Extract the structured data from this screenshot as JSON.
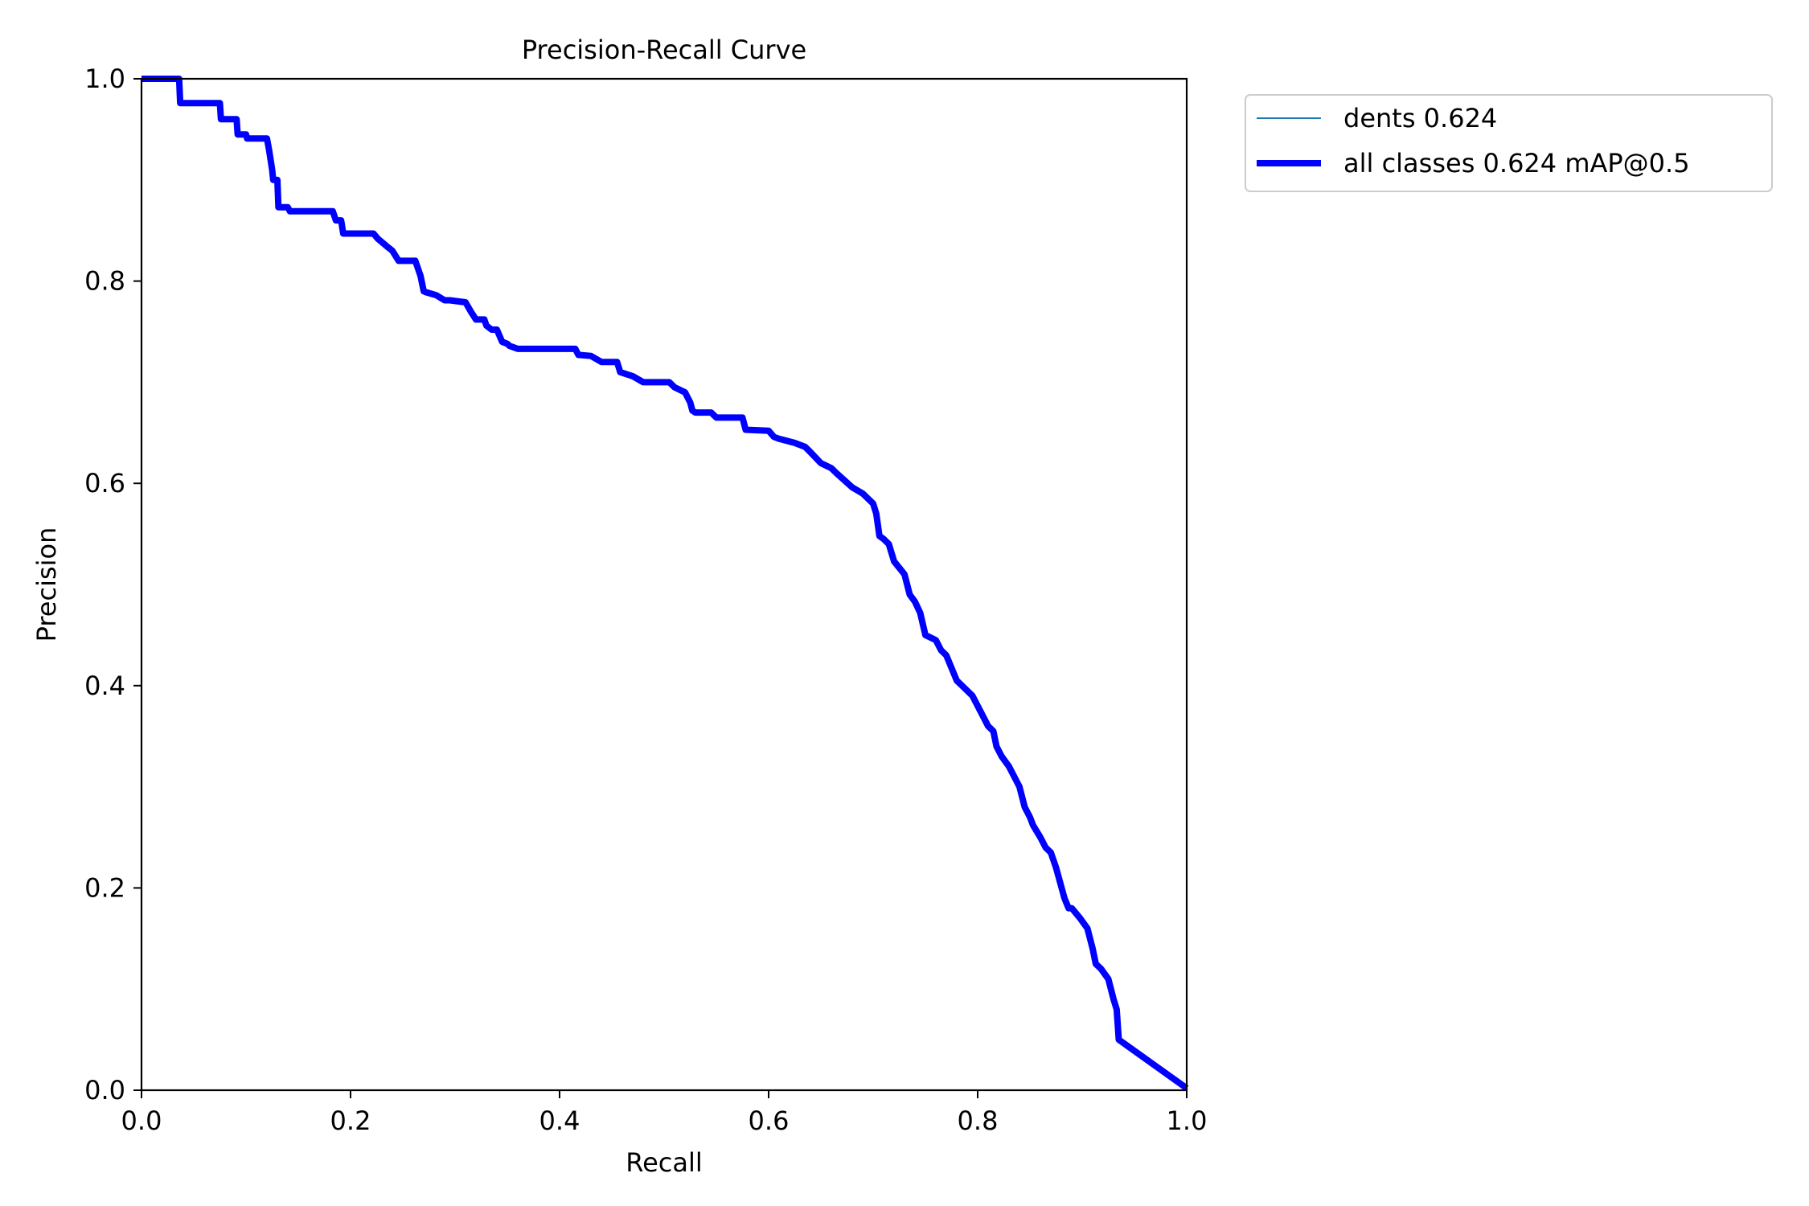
{
  "chart_data": {
    "type": "line",
    "title": "Precision-Recall Curve",
    "xlabel": "Recall",
    "ylabel": "Precision",
    "xlim": [
      0.0,
      1.0
    ],
    "ylim": [
      0.0,
      1.0
    ],
    "xticks": [
      "0.0",
      "0.2",
      "0.4",
      "0.6",
      "0.8",
      "1.0"
    ],
    "yticks": [
      "0.0",
      "0.2",
      "0.4",
      "0.6",
      "0.8",
      "1.0"
    ],
    "grid": false,
    "legend_position": "outside-top-right",
    "series": [
      {
        "name": "dents 0.624",
        "color": "#1f77b4",
        "x": [
          0.0,
          0.036,
          0.037,
          0.075,
          0.076,
          0.091,
          0.092,
          0.1,
          0.101,
          0.12,
          0.122,
          0.125,
          0.126,
          0.13,
          0.131,
          0.14,
          0.142,
          0.183,
          0.186,
          0.191,
          0.193,
          0.222,
          0.226,
          0.234,
          0.24,
          0.246,
          0.25,
          0.262,
          0.267,
          0.27,
          0.272,
          0.282,
          0.29,
          0.295,
          0.31,
          0.315,
          0.32,
          0.328,
          0.33,
          0.335,
          0.34,
          0.345,
          0.35,
          0.352,
          0.36,
          0.415,
          0.418,
          0.43,
          0.44,
          0.455,
          0.458,
          0.47,
          0.48,
          0.505,
          0.51,
          0.52,
          0.525,
          0.527,
          0.53,
          0.545,
          0.55,
          0.575,
          0.578,
          0.6,
          0.605,
          0.61,
          0.625,
          0.635,
          0.638,
          0.65,
          0.66,
          0.665,
          0.68,
          0.69,
          0.7,
          0.703,
          0.706,
          0.71,
          0.715,
          0.72,
          0.73,
          0.735,
          0.74,
          0.745,
          0.75,
          0.76,
          0.765,
          0.77,
          0.78,
          0.785,
          0.795,
          0.8,
          0.81,
          0.815,
          0.818,
          0.823,
          0.83,
          0.84,
          0.845,
          0.85,
          0.853,
          0.86,
          0.865,
          0.87,
          0.875,
          0.883,
          0.887,
          0.89,
          0.898,
          0.905,
          0.91,
          0.913,
          0.918,
          0.925,
          0.93,
          0.933,
          0.935,
          1.0
        ],
        "y": [
          1.0,
          1.0,
          0.976,
          0.976,
          0.96,
          0.96,
          0.945,
          0.945,
          0.941,
          0.941,
          0.93,
          0.91,
          0.9,
          0.9,
          0.873,
          0.873,
          0.869,
          0.869,
          0.86,
          0.86,
          0.847,
          0.847,
          0.842,
          0.835,
          0.83,
          0.82,
          0.82,
          0.82,
          0.805,
          0.79,
          0.789,
          0.786,
          0.781,
          0.781,
          0.779,
          0.77,
          0.762,
          0.762,
          0.756,
          0.752,
          0.752,
          0.74,
          0.738,
          0.736,
          0.733,
          0.733,
          0.727,
          0.726,
          0.72,
          0.72,
          0.71,
          0.706,
          0.7,
          0.7,
          0.695,
          0.69,
          0.68,
          0.672,
          0.67,
          0.67,
          0.665,
          0.665,
          0.653,
          0.652,
          0.646,
          0.644,
          0.64,
          0.636,
          0.633,
          0.62,
          0.615,
          0.61,
          0.596,
          0.59,
          0.58,
          0.57,
          0.548,
          0.545,
          0.54,
          0.523,
          0.51,
          0.49,
          0.483,
          0.472,
          0.45,
          0.445,
          0.435,
          0.43,
          0.405,
          0.4,
          0.39,
          0.38,
          0.36,
          0.355,
          0.34,
          0.33,
          0.32,
          0.3,
          0.28,
          0.27,
          0.262,
          0.25,
          0.24,
          0.235,
          0.22,
          0.19,
          0.18,
          0.18,
          0.17,
          0.16,
          0.14,
          0.125,
          0.12,
          0.11,
          0.09,
          0.08,
          0.05,
          0.002
        ]
      },
      {
        "name": "all classes 0.624 mAP@0.5",
        "color": "#0000ff",
        "x": [
          0.0,
          0.036,
          0.037,
          0.075,
          0.076,
          0.091,
          0.092,
          0.1,
          0.101,
          0.12,
          0.122,
          0.125,
          0.126,
          0.13,
          0.131,
          0.14,
          0.142,
          0.183,
          0.186,
          0.191,
          0.193,
          0.222,
          0.226,
          0.234,
          0.24,
          0.246,
          0.25,
          0.262,
          0.267,
          0.27,
          0.272,
          0.282,
          0.29,
          0.295,
          0.31,
          0.315,
          0.32,
          0.328,
          0.33,
          0.335,
          0.34,
          0.345,
          0.35,
          0.352,
          0.36,
          0.415,
          0.418,
          0.43,
          0.44,
          0.455,
          0.458,
          0.47,
          0.48,
          0.505,
          0.51,
          0.52,
          0.525,
          0.527,
          0.53,
          0.545,
          0.55,
          0.575,
          0.578,
          0.6,
          0.605,
          0.61,
          0.625,
          0.635,
          0.638,
          0.65,
          0.66,
          0.665,
          0.68,
          0.69,
          0.7,
          0.703,
          0.706,
          0.71,
          0.715,
          0.72,
          0.73,
          0.735,
          0.74,
          0.745,
          0.75,
          0.76,
          0.765,
          0.77,
          0.78,
          0.785,
          0.795,
          0.8,
          0.81,
          0.815,
          0.818,
          0.823,
          0.83,
          0.84,
          0.845,
          0.85,
          0.853,
          0.86,
          0.865,
          0.87,
          0.875,
          0.883,
          0.887,
          0.89,
          0.898,
          0.905,
          0.91,
          0.913,
          0.918,
          0.925,
          0.93,
          0.933,
          0.935,
          1.0
        ],
        "y": [
          1.0,
          1.0,
          0.976,
          0.976,
          0.96,
          0.96,
          0.945,
          0.945,
          0.941,
          0.941,
          0.93,
          0.91,
          0.9,
          0.9,
          0.873,
          0.873,
          0.869,
          0.869,
          0.86,
          0.86,
          0.847,
          0.847,
          0.842,
          0.835,
          0.83,
          0.82,
          0.82,
          0.82,
          0.805,
          0.79,
          0.789,
          0.786,
          0.781,
          0.781,
          0.779,
          0.77,
          0.762,
          0.762,
          0.756,
          0.752,
          0.752,
          0.74,
          0.738,
          0.736,
          0.733,
          0.733,
          0.727,
          0.726,
          0.72,
          0.72,
          0.71,
          0.706,
          0.7,
          0.7,
          0.695,
          0.69,
          0.68,
          0.672,
          0.67,
          0.67,
          0.665,
          0.665,
          0.653,
          0.652,
          0.646,
          0.644,
          0.64,
          0.636,
          0.633,
          0.62,
          0.615,
          0.61,
          0.596,
          0.59,
          0.58,
          0.57,
          0.548,
          0.545,
          0.54,
          0.523,
          0.51,
          0.49,
          0.483,
          0.472,
          0.45,
          0.445,
          0.435,
          0.43,
          0.405,
          0.4,
          0.39,
          0.38,
          0.36,
          0.355,
          0.34,
          0.33,
          0.32,
          0.3,
          0.28,
          0.27,
          0.262,
          0.25,
          0.24,
          0.235,
          0.22,
          0.19,
          0.18,
          0.18,
          0.17,
          0.16,
          0.14,
          0.125,
          0.12,
          0.11,
          0.09,
          0.08,
          0.05,
          0.002
        ]
      }
    ]
  }
}
